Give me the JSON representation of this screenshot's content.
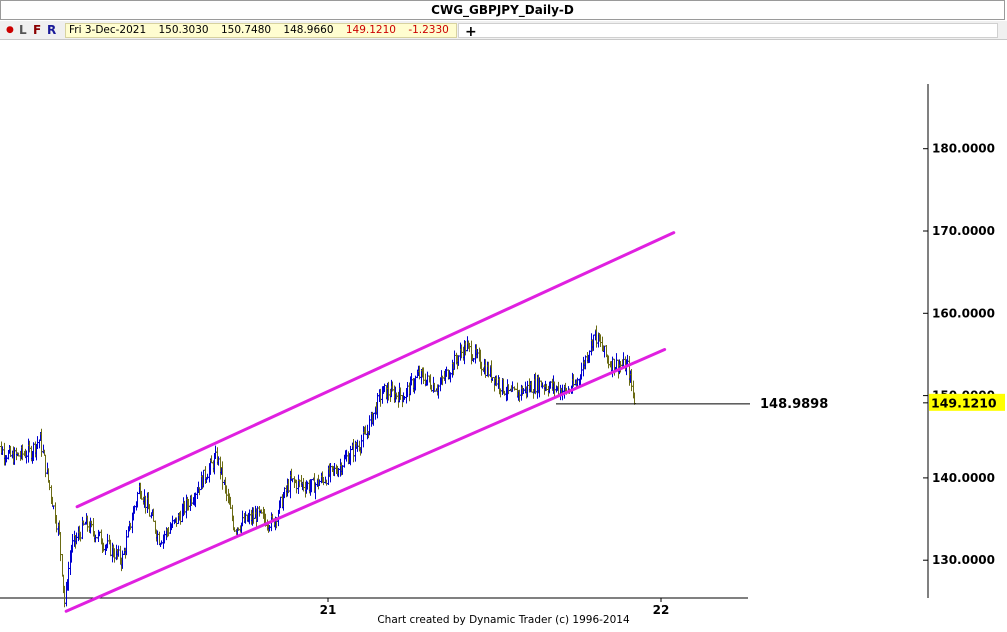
{
  "window": {
    "title": "CWG_GBPJPY_Daily-D"
  },
  "toolbar": {
    "buttons": [
      {
        "label": "●",
        "color": "#cc0000"
      },
      {
        "label": "L",
        "color": "#555555"
      },
      {
        "label": "F",
        "color": "#8b0000"
      },
      {
        "label": "R",
        "color": "#1a1a99"
      }
    ],
    "ohlc": {
      "date": "Fri 3-Dec-2021",
      "open": "150.3030",
      "high": "150.7480",
      "low": "148.9660",
      "close": "149.1210",
      "change": "-1.2330"
    },
    "add_label": "+"
  },
  "chart_data": {
    "type": "ohlc-bar",
    "symbol": "CWG_GBPJPY",
    "timeframe": "Daily",
    "x_tick_labels": [
      "21",
      "22"
    ],
    "y_tick_labels": [
      "180.0000",
      "170.0000",
      "160.0000",
      "150.0000",
      "140.0000",
      "130.0000"
    ],
    "y_ticks": [
      180,
      170,
      160,
      150,
      140,
      130
    ],
    "last_price_label": "149.1210",
    "last_price": 149.121,
    "horizontal_line": {
      "value": 148.9898,
      "label": "148.9898"
    },
    "channel": {
      "color": "#e020e0",
      "upper": [
        {
          "date": "2020-04-01",
          "value": 136.5
        },
        {
          "date": "2022-01-15",
          "value": 169.8
        }
      ],
      "lower": [
        {
          "date": "2020-03-20",
          "value": 123.8
        },
        {
          "date": "2022-01-05",
          "value": 155.6
        }
      ]
    },
    "bar_colors": {
      "up": "#0000d0",
      "down": "#6b6b14"
    },
    "price_path": [
      [
        "2020-01-01",
        144.0
      ],
      [
        "2020-01-20",
        142.5
      ],
      [
        "2020-02-10",
        143.2
      ],
      [
        "2020-02-20",
        144.8
      ],
      [
        "2020-03-05",
        137.0
      ],
      [
        "2020-03-12",
        133.0
      ],
      [
        "2020-03-18",
        124.8
      ],
      [
        "2020-03-25",
        131.5
      ],
      [
        "2020-04-10",
        134.5
      ],
      [
        "2020-05-01",
        132.0
      ],
      [
        "2020-05-20",
        130.0
      ],
      [
        "2020-06-08",
        139.0
      ],
      [
        "2020-06-30",
        132.5
      ],
      [
        "2020-07-20",
        135.0
      ],
      [
        "2020-08-20",
        140.5
      ],
      [
        "2020-09-01",
        142.5
      ],
      [
        "2020-09-20",
        134.0
      ],
      [
        "2020-10-15",
        135.5
      ],
      [
        "2020-11-01",
        134.5
      ],
      [
        "2020-11-20",
        139.5
      ],
      [
        "2020-12-15",
        139.0
      ],
      [
        "2021-01-10",
        141.0
      ],
      [
        "2021-02-10",
        145.0
      ],
      [
        "2021-03-01",
        150.5
      ],
      [
        "2021-03-25",
        150.0
      ],
      [
        "2021-04-10",
        152.5
      ],
      [
        "2021-05-01",
        151.0
      ],
      [
        "2021-05-25",
        155.0
      ],
      [
        "2021-06-01",
        156.0
      ],
      [
        "2021-06-25",
        153.0
      ],
      [
        "2021-07-20",
        150.0
      ],
      [
        "2021-08-20",
        151.5
      ],
      [
        "2021-09-20",
        150.5
      ],
      [
        "2021-09-30",
        151.5
      ],
      [
        "2021-10-20",
        157.5
      ],
      [
        "2021-11-05",
        154.0
      ],
      [
        "2021-11-25",
        153.5
      ],
      [
        "2021-12-03",
        149.121
      ]
    ]
  },
  "footer": {
    "credit": "Chart created by Dynamic Trader  (c) 1996-2014"
  }
}
